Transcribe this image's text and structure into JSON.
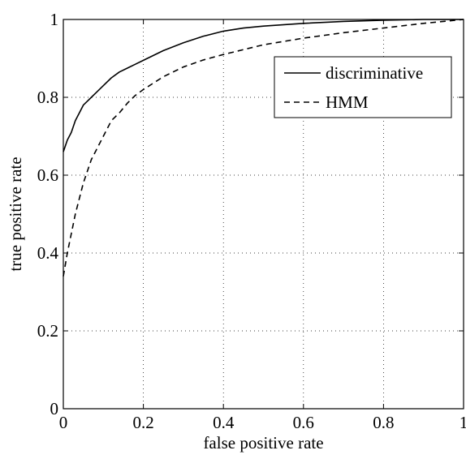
{
  "chart_data": {
    "type": "line",
    "title": "",
    "xlabel": "false positive rate",
    "ylabel": "true positive rate",
    "xlim": [
      0,
      1
    ],
    "ylim": [
      0,
      1
    ],
    "xticks": [
      "0",
      "0.2",
      "0.4",
      "0.6",
      "0.8",
      "1"
    ],
    "yticks": [
      "0",
      "0.2",
      "0.4",
      "0.6",
      "0.8",
      "1"
    ],
    "grid": true,
    "legend_position": "top-right",
    "series": [
      {
        "name": "discriminative",
        "style": "solid",
        "color": "#000000",
        "x": [
          0,
          0.01,
          0.02,
          0.03,
          0.04,
          0.05,
          0.06,
          0.07,
          0.08,
          0.1,
          0.12,
          0.14,
          0.16,
          0.18,
          0.2,
          0.25,
          0.3,
          0.35,
          0.4,
          0.45,
          0.5,
          0.6,
          0.7,
          0.8,
          0.9,
          1.0
        ],
        "y": [
          0.66,
          0.69,
          0.71,
          0.74,
          0.76,
          0.78,
          0.79,
          0.8,
          0.81,
          0.83,
          0.85,
          0.865,
          0.875,
          0.885,
          0.895,
          0.92,
          0.94,
          0.957,
          0.97,
          0.978,
          0.983,
          0.99,
          0.995,
          0.998,
          1.0,
          1.0
        ]
      },
      {
        "name": "HMM",
        "style": "dashed",
        "color": "#000000",
        "x": [
          0,
          0.01,
          0.02,
          0.03,
          0.04,
          0.05,
          0.06,
          0.07,
          0.08,
          0.1,
          0.12,
          0.14,
          0.16,
          0.18,
          0.2,
          0.25,
          0.3,
          0.35,
          0.4,
          0.5,
          0.6,
          0.7,
          0.8,
          0.9,
          1.0
        ],
        "y": [
          0.34,
          0.4,
          0.45,
          0.5,
          0.54,
          0.58,
          0.61,
          0.64,
          0.66,
          0.7,
          0.74,
          0.76,
          0.785,
          0.805,
          0.82,
          0.853,
          0.878,
          0.896,
          0.91,
          0.935,
          0.952,
          0.966,
          0.978,
          0.99,
          1.0
        ]
      }
    ]
  }
}
